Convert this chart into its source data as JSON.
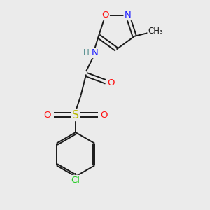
{
  "bg_color": "#ebebeb",
  "bond_color": "#1a1a1a",
  "atom_colors": {
    "N": "#2020ff",
    "O": "#ff1010",
    "S": "#b8b800",
    "Cl": "#22cc22",
    "H": "#4a8888",
    "C": "#1a1a1a"
  },
  "lw": 1.4,
  "fs": 9.5,
  "xlim": [
    0,
    8
  ],
  "ylim": [
    0,
    10
  ]
}
